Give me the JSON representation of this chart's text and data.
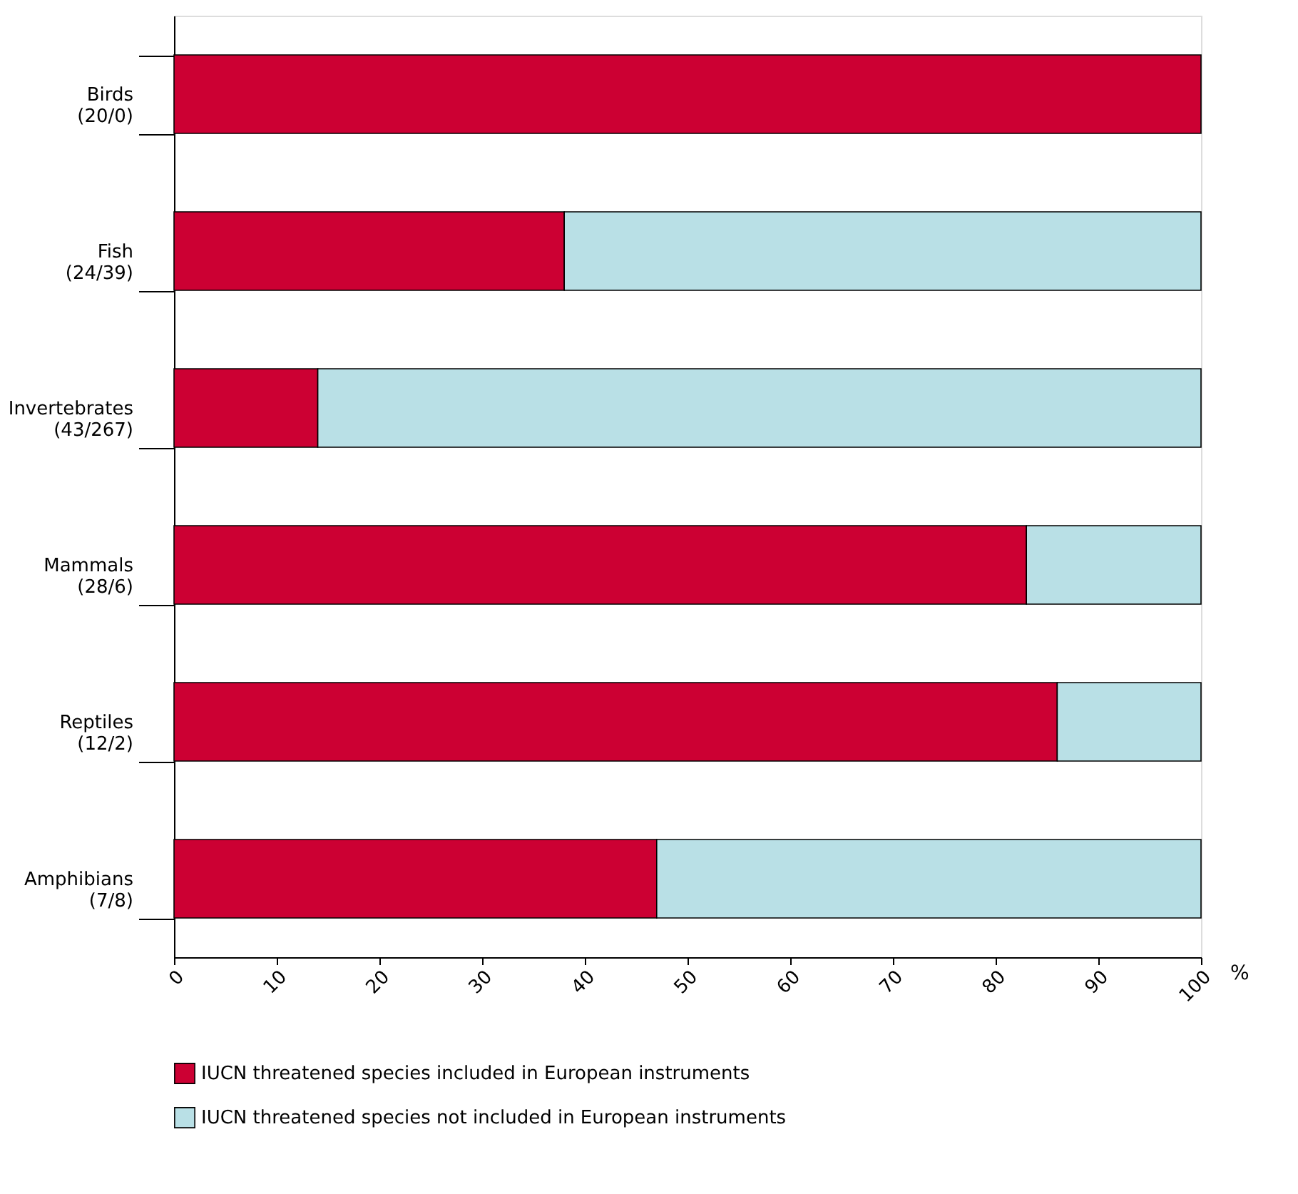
{
  "chart_data": {
    "type": "bar",
    "orientation": "horizontal",
    "stacked": true,
    "categories": [
      "Birds\n(20/0)",
      "Fish\n(24/39)",
      "Invertebrates\n(43/267)",
      "Mammals\n(28/6)",
      "Reptiles\n(12/2)",
      "Amphibians\n(7/8)"
    ],
    "series": [
      {
        "name": "IUCN threatened species included in European instruments",
        "color": "#cc0033",
        "values": [
          100,
          38,
          14,
          83,
          86,
          47
        ]
      },
      {
        "name": "IUCN threatened species not included in European instruments",
        "color": "#b9e0e6",
        "values": [
          0,
          62,
          86,
          17,
          14,
          53
        ]
      }
    ],
    "xlim": [
      0,
      100
    ],
    "xticks": [
      0,
      10,
      20,
      30,
      40,
      50,
      60,
      70,
      80,
      90,
      100
    ],
    "xlabel": "%",
    "legend": "bottom",
    "grid": false
  }
}
